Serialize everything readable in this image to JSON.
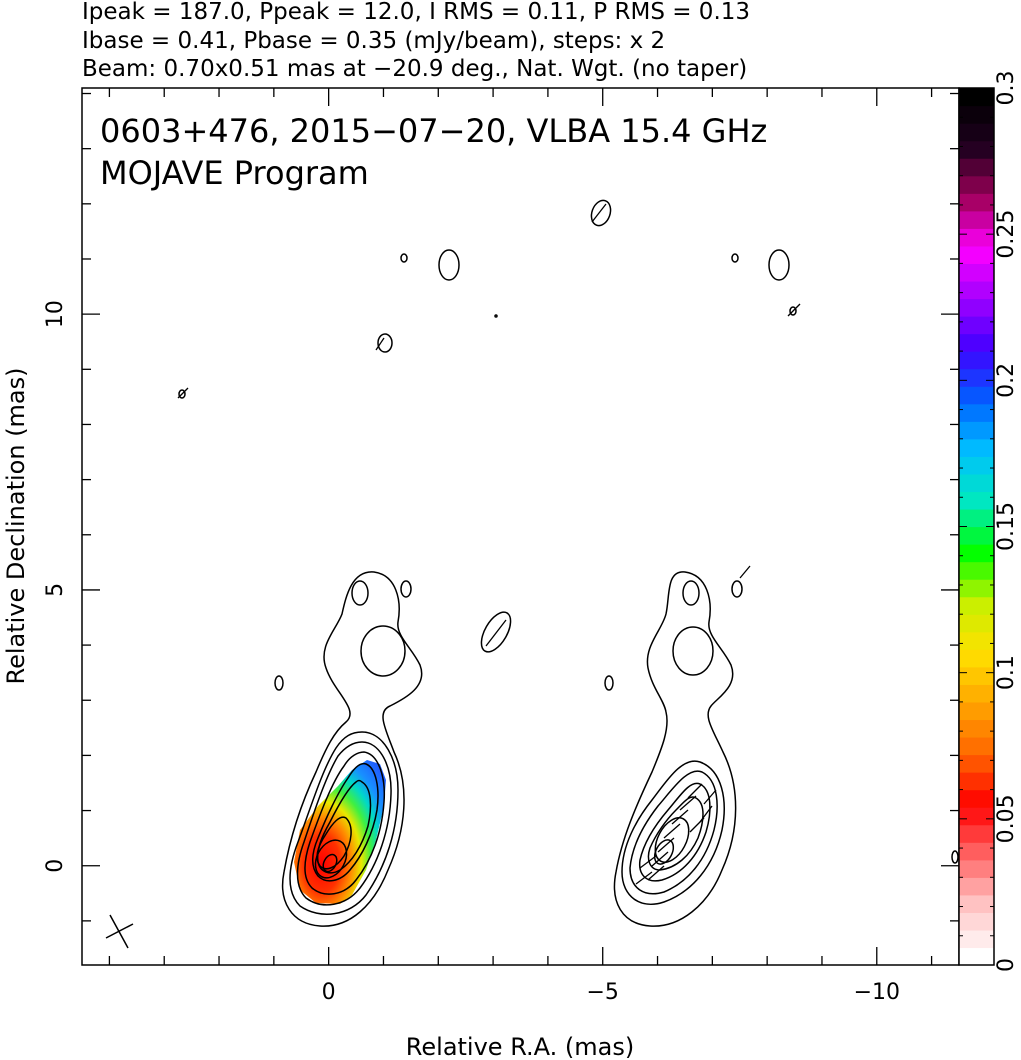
{
  "header_lines": [
    "Ipeak = 187.0, Ppeak = 12.0, I RMS = 0.11, P RMS = 0.13",
    "Ibase = 0.41, Pbase = 0.35 (mJy/beam), steps: x 2",
    "Beam: 0.70x0.51 mas at −20.9 deg., Nat. Wgt. (no taper)"
  ],
  "inset_labels": [
    "0603+476, 2015−07−20, VLBA 15.4 GHz",
    "MOJAVE Program"
  ],
  "chart_data": {
    "type": "contour",
    "xlabel": "Relative R.A. (mas)",
    "ylabel": "Relative Declination (mas)",
    "xlim": [
      4.5,
      -11.5
    ],
    "ylim": [
      -1.8,
      14.1
    ],
    "x_ticks": [
      {
        "value": 0,
        "label": "0"
      },
      {
        "value": -5,
        "label": "−5"
      },
      {
        "value": -10,
        "label": "−10"
      }
    ],
    "y_ticks": [
      {
        "value": 0,
        "label": "0"
      },
      {
        "value": 5,
        "label": "5"
      },
      {
        "value": 10,
        "label": "10"
      }
    ],
    "x_minor_step": 1,
    "y_minor_step": 1,
    "colorbar": {
      "range": [
        0,
        0.3
      ],
      "ticks": [
        {
          "value": 0,
          "label": "0"
        },
        {
          "value": 0.05,
          "label": "0.05"
        },
        {
          "value": 0.1,
          "label": "0.1"
        },
        {
          "value": 0.15,
          "label": "0.15"
        },
        {
          "value": 0.2,
          "label": "0.2"
        },
        {
          "value": 0.25,
          "label": "0.25"
        },
        {
          "value": 0.3,
          "label": "0.3"
        }
      ],
      "colors": [
        "#ffffff",
        "#ffc6c6",
        "#ff6666",
        "#ff0000",
        "#ff6600",
        "#ffa500",
        "#ffe000",
        "#c8f000",
        "#00ff00",
        "#00e8c0",
        "#00c0ff",
        "#0060ff",
        "#4000ff",
        "#a000ff",
        "#ff00ff",
        "#a0005a",
        "#200020",
        "#000000"
      ]
    },
    "beam": {
      "major_mas": 0.7,
      "minor_mas": 0.51,
      "pa_deg": -20.9
    },
    "stokes_I_contour_levels_mJy_per_beam": [
      0.41,
      0.82,
      1.64,
      3.28,
      6.56,
      13.12,
      26.24,
      52.48,
      104.96
    ],
    "source_peak_position_mas": [
      0,
      0
    ],
    "fractional_polarization_region": {
      "core_value": 0.04,
      "max_value": 0.22,
      "extent_ra_mas": [
        0.5,
        -1.0
      ],
      "extent_dec_mas": [
        -0.6,
        2.0
      ]
    },
    "evpa_panel_offset_ra_mas": -6.2
  }
}
